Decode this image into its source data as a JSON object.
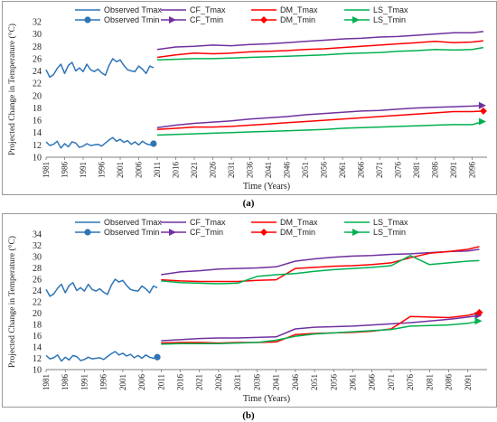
{
  "panels": [
    {
      "caption": "(a)"
    },
    {
      "caption": "(b)"
    }
  ],
  "chart_data": [
    {
      "type": "line",
      "xlabel": "Time (Years)",
      "ylabel": "Projected Change in Temperature (°C)",
      "ylim": [
        10,
        32
      ],
      "yticks": [
        10,
        12,
        14,
        16,
        18,
        20,
        22,
        24,
        26,
        28,
        30,
        32
      ],
      "xlim": [
        1981,
        2100
      ],
      "xticks": [
        1981,
        1986,
        1991,
        1996,
        2001,
        2006,
        2011,
        2016,
        2021,
        2026,
        2031,
        2036,
        2041,
        2046,
        2051,
        2056,
        2061,
        2066,
        2071,
        2076,
        2081,
        2086,
        2091,
        2096
      ],
      "legend_placement": "top",
      "series": [
        {
          "name": "Observed Tmax",
          "color": "#2e75b6",
          "marker": "none",
          "x": [
            1981,
            1982,
            1983,
            1984,
            1985,
            1986,
            1987,
            1988,
            1989,
            1990,
            1991,
            1992,
            1993,
            1994,
            1995,
            1996,
            1997,
            1998,
            1999,
            2000,
            2001,
            2002,
            2003,
            2004,
            2005,
            2006,
            2007,
            2008,
            2009,
            2010
          ],
          "values": [
            24.2,
            23.0,
            23.4,
            24.4,
            25.1,
            23.6,
            24.9,
            25.4,
            24.0,
            24.5,
            23.9,
            25.1,
            24.2,
            23.9,
            24.3,
            23.7,
            23.3,
            24.9,
            26.0,
            25.5,
            25.8,
            24.9,
            24.2,
            24.0,
            23.9,
            24.8,
            24.3,
            23.6,
            24.8,
            24.5
          ]
        },
        {
          "name": "Observed Tmin",
          "color": "#2e75b6",
          "marker": "circle",
          "x": [
            1981,
            1982,
            1983,
            1984,
            1985,
            1986,
            1987,
            1988,
            1989,
            1990,
            1991,
            1992,
            1993,
            1994,
            1995,
            1996,
            1997,
            1998,
            1999,
            2000,
            2001,
            2002,
            2003,
            2004,
            2005,
            2006,
            2007,
            2008,
            2009,
            2010
          ],
          "values": [
            12.5,
            11.9,
            12.1,
            12.6,
            11.5,
            12.2,
            11.7,
            12.5,
            12.3,
            11.6,
            11.8,
            12.2,
            11.9,
            12.0,
            12.1,
            11.8,
            12.3,
            12.8,
            13.2,
            12.6,
            12.9,
            12.4,
            12.7,
            12.1,
            12.5,
            12.0,
            12.6,
            12.2,
            12.0,
            12.2
          ]
        },
        {
          "name": "CF_Tmax",
          "color": "#7030a0",
          "marker": "none",
          "x": [
            2011,
            2016,
            2021,
            2026,
            2031,
            2036,
            2041,
            2046,
            2051,
            2056,
            2061,
            2066,
            2071,
            2076,
            2081,
            2086,
            2091,
            2096,
            2099
          ],
          "values": [
            27.5,
            27.9,
            28.0,
            28.2,
            28.1,
            28.3,
            28.4,
            28.6,
            28.8,
            29.0,
            29.2,
            29.3,
            29.5,
            29.6,
            29.8,
            30.0,
            30.2,
            30.2,
            30.4
          ]
        },
        {
          "name": "CF_Tmin",
          "color": "#7030a0",
          "marker": "arrow",
          "x": [
            2011,
            2016,
            2021,
            2026,
            2031,
            2036,
            2041,
            2046,
            2051,
            2056,
            2061,
            2066,
            2071,
            2076,
            2081,
            2086,
            2091,
            2096,
            2099
          ],
          "values": [
            14.8,
            15.2,
            15.5,
            15.7,
            15.9,
            16.2,
            16.4,
            16.6,
            16.9,
            17.1,
            17.3,
            17.5,
            17.6,
            17.8,
            18.0,
            18.1,
            18.2,
            18.3,
            18.4
          ]
        },
        {
          "name": "DM_Tmax",
          "color": "#ff0000",
          "marker": "none",
          "x": [
            2011,
            2016,
            2021,
            2026,
            2031,
            2036,
            2041,
            2046,
            2051,
            2056,
            2061,
            2066,
            2071,
            2076,
            2081,
            2086,
            2091,
            2096,
            2099
          ],
          "values": [
            26.2,
            26.6,
            26.9,
            26.8,
            26.9,
            27.1,
            27.2,
            27.3,
            27.5,
            27.6,
            27.8,
            28.0,
            28.2,
            28.4,
            28.6,
            28.8,
            28.6,
            28.7,
            28.9
          ]
        },
        {
          "name": "DM_Tmin",
          "color": "#ff0000",
          "marker": "diamond",
          "x": [
            2011,
            2016,
            2021,
            2026,
            2031,
            2036,
            2041,
            2046,
            2051,
            2056,
            2061,
            2066,
            2071,
            2076,
            2081,
            2086,
            2091,
            2096,
            2099
          ],
          "values": [
            14.5,
            14.7,
            14.9,
            14.9,
            15.0,
            15.2,
            15.4,
            15.6,
            15.8,
            16.0,
            16.2,
            16.4,
            16.6,
            16.8,
            17.0,
            17.2,
            17.4,
            17.4,
            17.5
          ]
        },
        {
          "name": "LS_Tmax",
          "color": "#00b050",
          "marker": "none",
          "x": [
            2011,
            2016,
            2021,
            2026,
            2031,
            2036,
            2041,
            2046,
            2051,
            2056,
            2061,
            2066,
            2071,
            2076,
            2081,
            2086,
            2091,
            2096,
            2099
          ],
          "values": [
            25.8,
            25.9,
            26.0,
            26.0,
            26.1,
            26.2,
            26.3,
            26.4,
            26.5,
            26.6,
            26.8,
            26.9,
            27.0,
            27.2,
            27.3,
            27.5,
            27.4,
            27.5,
            27.8
          ]
        },
        {
          "name": "LS_Tmin",
          "color": "#00b050",
          "marker": "arrow",
          "x": [
            2011,
            2016,
            2021,
            2026,
            2031,
            2036,
            2041,
            2046,
            2051,
            2056,
            2061,
            2066,
            2071,
            2076,
            2081,
            2086,
            2091,
            2096,
            2099
          ],
          "values": [
            13.6,
            13.7,
            13.8,
            13.9,
            14.0,
            14.1,
            14.2,
            14.3,
            14.4,
            14.5,
            14.7,
            14.8,
            14.9,
            15.0,
            15.1,
            15.2,
            15.3,
            15.3,
            15.8
          ]
        }
      ]
    },
    {
      "type": "line",
      "xlabel": "Time (Years)",
      "ylabel": "Projected Change in Temperature (°C)",
      "ylim": [
        10,
        34
      ],
      "yticks": [
        10,
        12,
        14,
        16,
        18,
        20,
        22,
        24,
        26,
        28,
        30,
        32,
        34
      ],
      "xlim": [
        1981,
        2096
      ],
      "xticks": [
        1981,
        1986,
        1991,
        1996,
        2001,
        2006,
        2011,
        2016,
        2021,
        2026,
        2031,
        2036,
        2041,
        2046,
        2051,
        2056,
        2061,
        2066,
        2071,
        2076,
        2081,
        2086,
        2091
      ],
      "legend_placement": "top",
      "series": [
        {
          "name": "Observed Tmax",
          "color": "#2e75b6",
          "marker": "none",
          "x": [
            1981,
            1982,
            1983,
            1984,
            1985,
            1986,
            1987,
            1988,
            1989,
            1990,
            1991,
            1992,
            1993,
            1994,
            1995,
            1996,
            1997,
            1998,
            1999,
            2000,
            2001,
            2002,
            2003,
            2004,
            2005,
            2006,
            2007,
            2008,
            2009,
            2010
          ],
          "values": [
            24.2,
            23.0,
            23.4,
            24.4,
            25.1,
            23.6,
            24.9,
            25.4,
            24.0,
            24.5,
            23.9,
            25.1,
            24.2,
            23.9,
            24.3,
            23.7,
            23.3,
            24.9,
            26.0,
            25.5,
            25.8,
            24.9,
            24.2,
            24.0,
            23.9,
            24.8,
            24.3,
            23.6,
            24.8,
            24.5
          ]
        },
        {
          "name": "Observed Tmin",
          "color": "#2e75b6",
          "marker": "circle",
          "x": [
            1981,
            1982,
            1983,
            1984,
            1985,
            1986,
            1987,
            1988,
            1989,
            1990,
            1991,
            1992,
            1993,
            1994,
            1995,
            1996,
            1997,
            1998,
            1999,
            2000,
            2001,
            2002,
            2003,
            2004,
            2005,
            2006,
            2007,
            2008,
            2009,
            2010
          ],
          "values": [
            12.5,
            11.9,
            12.1,
            12.6,
            11.5,
            12.2,
            11.7,
            12.5,
            12.3,
            11.6,
            11.8,
            12.2,
            11.9,
            12.0,
            12.1,
            11.8,
            12.3,
            12.8,
            13.2,
            12.6,
            12.9,
            12.4,
            12.7,
            12.1,
            12.5,
            12.0,
            12.6,
            12.2,
            12.0,
            12.2
          ]
        },
        {
          "name": "CF_Tmax",
          "color": "#7030a0",
          "marker": "none",
          "x": [
            2011,
            2016,
            2021,
            2026,
            2031,
            2036,
            2041,
            2046,
            2051,
            2056,
            2061,
            2066,
            2071,
            2076,
            2081,
            2086,
            2091,
            2094
          ],
          "values": [
            26.8,
            27.3,
            27.5,
            27.8,
            27.9,
            28.0,
            28.2,
            29.2,
            29.6,
            29.9,
            30.1,
            30.2,
            30.4,
            30.5,
            30.7,
            30.9,
            31.0,
            31.3
          ]
        },
        {
          "name": "CF_Tmin",
          "color": "#7030a0",
          "marker": "arrow",
          "x": [
            2011,
            2016,
            2021,
            2026,
            2031,
            2036,
            2041,
            2046,
            2051,
            2056,
            2061,
            2066,
            2071,
            2076,
            2081,
            2086,
            2091,
            2094
          ],
          "values": [
            15.1,
            15.3,
            15.5,
            15.6,
            15.6,
            15.7,
            15.8,
            17.2,
            17.5,
            17.6,
            17.7,
            17.9,
            18.1,
            18.3,
            18.6,
            18.9,
            19.3,
            19.6
          ]
        },
        {
          "name": "DM_Tmax",
          "color": "#ff0000",
          "marker": "none",
          "x": [
            2011,
            2016,
            2021,
            2026,
            2031,
            2036,
            2041,
            2046,
            2051,
            2056,
            2061,
            2066,
            2071,
            2076,
            2081,
            2086,
            2091,
            2094
          ],
          "values": [
            25.9,
            25.7,
            25.6,
            25.6,
            25.6,
            25.8,
            25.9,
            27.9,
            28.1,
            28.3,
            28.4,
            28.6,
            28.9,
            29.8,
            30.6,
            30.9,
            31.3,
            31.8
          ]
        },
        {
          "name": "DM_Tmin",
          "color": "#ff0000",
          "marker": "diamond",
          "x": [
            2011,
            2016,
            2021,
            2026,
            2031,
            2036,
            2041,
            2046,
            2051,
            2056,
            2061,
            2066,
            2071,
            2076,
            2081,
            2086,
            2091,
            2094
          ],
          "values": [
            14.7,
            14.8,
            14.8,
            14.7,
            14.8,
            14.8,
            14.9,
            16.2,
            16.4,
            16.5,
            16.6,
            16.8,
            17.2,
            19.4,
            19.3,
            19.2,
            19.6,
            20.1
          ]
        },
        {
          "name": "LS_Tmax",
          "color": "#00b050",
          "marker": "none",
          "x": [
            2011,
            2016,
            2021,
            2026,
            2031,
            2036,
            2041,
            2046,
            2051,
            2056,
            2061,
            2066,
            2071,
            2076,
            2081,
            2086,
            2091,
            2094
          ],
          "values": [
            25.7,
            25.4,
            25.3,
            25.2,
            25.3,
            26.5,
            26.8,
            27.0,
            27.4,
            27.7,
            27.9,
            28.1,
            28.4,
            30.2,
            28.6,
            28.9,
            29.2,
            29.3
          ]
        },
        {
          "name": "LS_Tmin",
          "color": "#00b050",
          "marker": "arrow",
          "x": [
            2011,
            2016,
            2021,
            2026,
            2031,
            2036,
            2041,
            2046,
            2051,
            2056,
            2061,
            2066,
            2071,
            2076,
            2081,
            2086,
            2091,
            2094
          ],
          "values": [
            14.5,
            14.6,
            14.6,
            14.6,
            14.7,
            14.8,
            15.2,
            15.9,
            16.3,
            16.5,
            16.7,
            16.9,
            17.1,
            17.7,
            17.8,
            17.9,
            18.2,
            18.6
          ]
        }
      ]
    }
  ]
}
